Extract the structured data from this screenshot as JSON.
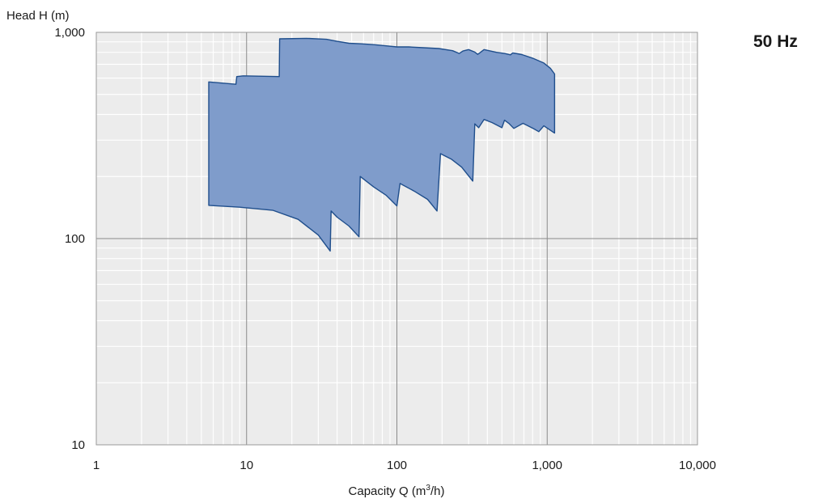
{
  "chart_data": {
    "type": "area",
    "xlabel": "Capacity Q (m",
    "xlabel_sup": "3",
    "xlabel_tail": "/h)",
    "ylabel": "Head H (m)",
    "badge": "50 Hz",
    "xscale": "log",
    "yscale": "log",
    "xlim": [
      1,
      10000
    ],
    "ylim": [
      10,
      1000
    ],
    "xticks": [
      {
        "value": 1,
        "label": "1"
      },
      {
        "value": 10,
        "label": "10"
      },
      {
        "value": 100,
        "label": "100"
      },
      {
        "value": 1000,
        "label": "1,000"
      },
      {
        "value": 10000,
        "label": "10,000"
      }
    ],
    "yticks": [
      {
        "value": 10,
        "label": "10"
      },
      {
        "value": 100,
        "label": "100"
      },
      {
        "value": 1000,
        "label": "1,000"
      }
    ],
    "grid": true,
    "colors": {
      "fill": "#7f9ccb",
      "stroke": "#1f4e8c",
      "plot_bg": "#ececec",
      "grid_minor": "#ffffff",
      "grid_major": "#8a8a8a"
    },
    "series": [
      {
        "upper_boundary": [
          [
            5.6,
            575
          ],
          [
            8.5,
            560
          ],
          [
            8.6,
            610
          ],
          [
            9.5,
            615
          ],
          [
            16.5,
            610
          ],
          [
            16.6,
            930
          ],
          [
            25,
            935
          ],
          [
            34,
            925
          ],
          [
            40,
            905
          ],
          [
            48,
            885
          ],
          [
            58,
            880
          ],
          [
            70,
            872
          ],
          [
            85,
            860
          ],
          [
            100,
            850
          ],
          [
            120,
            850
          ],
          [
            150,
            842
          ],
          [
            190,
            835
          ],
          [
            235,
            815
          ],
          [
            260,
            790
          ],
          [
            275,
            812
          ],
          [
            300,
            825
          ],
          [
            330,
            802
          ],
          [
            345,
            782
          ],
          [
            360,
            800
          ],
          [
            380,
            825
          ],
          [
            460,
            800
          ],
          [
            520,
            790
          ],
          [
            570,
            778
          ],
          [
            590,
            795
          ],
          [
            680,
            780
          ],
          [
            800,
            750
          ],
          [
            950,
            710
          ],
          [
            1050,
            670
          ],
          [
            1120,
            628
          ]
        ],
        "lower_boundary": [
          [
            1120,
            325
          ],
          [
            1050,
            335
          ],
          [
            950,
            352
          ],
          [
            880,
            330
          ],
          [
            820,
            340
          ],
          [
            730,
            355
          ],
          [
            690,
            362
          ],
          [
            600,
            342
          ],
          [
            560,
            360
          ],
          [
            520,
            375
          ],
          [
            500,
            345
          ],
          [
            430,
            365
          ],
          [
            380,
            378
          ],
          [
            350,
            345
          ],
          [
            330,
            360
          ],
          [
            320,
            190
          ],
          [
            270,
            222
          ],
          [
            230,
            243
          ],
          [
            195,
            258
          ],
          [
            185,
            136
          ],
          [
            160,
            155
          ],
          [
            130,
            170
          ],
          [
            105,
            185
          ],
          [
            100,
            144
          ],
          [
            85,
            162
          ],
          [
            70,
            178
          ],
          [
            57,
            200
          ],
          [
            56,
            102
          ],
          [
            48,
            115
          ],
          [
            40,
            127
          ],
          [
            36.5,
            136
          ],
          [
            36,
            87
          ],
          [
            30,
            104
          ],
          [
            22,
            124
          ],
          [
            15,
            137
          ],
          [
            9,
            142
          ],
          [
            5.6,
            145
          ]
        ]
      }
    ]
  }
}
